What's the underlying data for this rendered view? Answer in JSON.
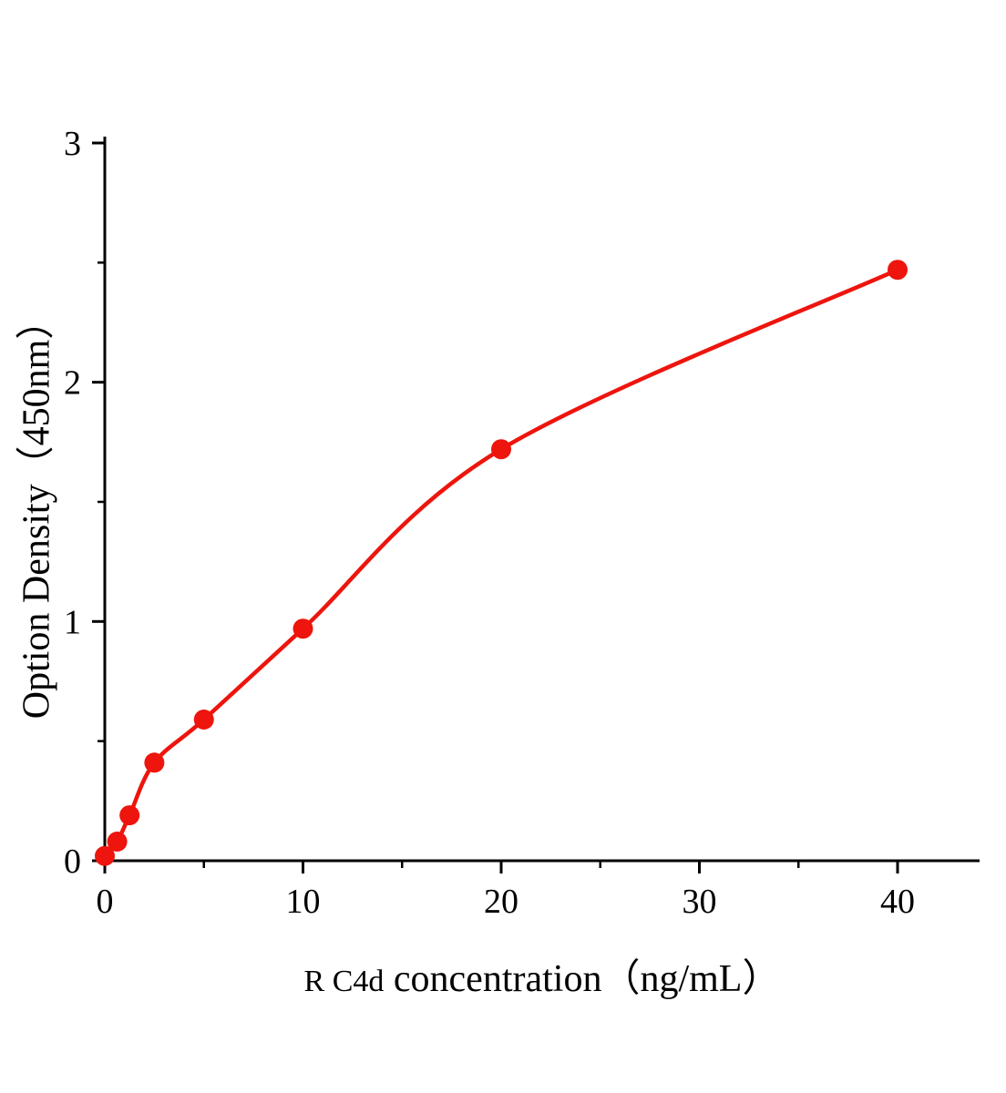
{
  "chart_data": {
    "type": "scatter",
    "title": "",
    "xlabel": "R C4d concentration（ng/mL）",
    "xlabel_prefix": "R C4d",
    "xlabel_suffix": " concentration（ng/mL）",
    "ylabel": "Option Density（450nm）",
    "x": [
      0,
      0.625,
      1.25,
      2.5,
      5,
      10,
      20,
      40
    ],
    "y": [
      0.02,
      0.08,
      0.19,
      0.41,
      0.59,
      0.97,
      1.72,
      2.47
    ],
    "xlim": [
      0,
      44.2
    ],
    "ylim": [
      0,
      3
    ],
    "xticks": [
      0,
      10,
      20,
      30,
      40
    ],
    "xminorticks": [
      5,
      15,
      25,
      35
    ],
    "yticks": [
      0,
      1,
      2,
      3
    ],
    "yminorticks": [
      0.5,
      1.5,
      2.5
    ],
    "has_fit_curve": true,
    "legend": "none",
    "grid": "off",
    "point_color": "#ed150d",
    "curve_color": "#ed150d",
    "axis_color": "#000000"
  }
}
